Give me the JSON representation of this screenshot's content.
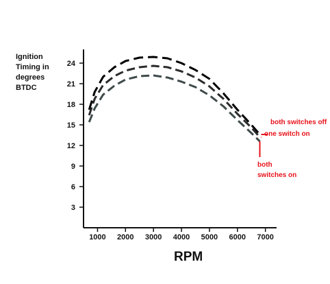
{
  "chart_data": {
    "type": "line",
    "title": "",
    "ylabel": "Ignition\nTiming in\ndegrees\nBTDC",
    "xlabel": "RPM",
    "x_ticks": [
      "1000",
      "2000",
      "3000",
      "4000",
      "5000",
      "6000",
      "7000"
    ],
    "y_ticks": [
      "3",
      "6",
      "9",
      "12",
      "15",
      "18",
      "21",
      "24"
    ],
    "xlim": [
      500,
      7400
    ],
    "ylim": [
      0,
      26
    ],
    "grid": false,
    "series": [
      {
        "name": "both switches off",
        "x": [
          700,
          900,
          1200,
          1600,
          2000,
          2500,
          3000,
          3500,
          4000,
          4500,
          5000,
          5500,
          6000,
          6500,
          6800
        ],
        "y": [
          17.2,
          19.8,
          22.0,
          23.4,
          24.3,
          24.8,
          24.9,
          24.7,
          24.0,
          23.0,
          21.7,
          19.6,
          17.2,
          15.0,
          13.6
        ],
        "color": "#000000",
        "dash": "14 7",
        "width": 3
      },
      {
        "name": "one switch on",
        "x": [
          700,
          900,
          1200,
          1600,
          2000,
          2500,
          3000,
          3500,
          4000,
          4500,
          5000,
          5500,
          6000,
          6500,
          6800
        ],
        "y": [
          16.4,
          18.8,
          20.8,
          22.1,
          22.9,
          23.4,
          23.6,
          23.4,
          22.8,
          21.9,
          20.6,
          18.8,
          16.6,
          14.6,
          13.2
        ],
        "color": "#2b2b2b",
        "dash": "12 6",
        "width": 3
      },
      {
        "name": "both switches on",
        "x": [
          700,
          900,
          1200,
          1600,
          2000,
          2500,
          3000,
          3500,
          4000,
          4500,
          5000,
          5500,
          6000,
          6500,
          6800
        ],
        "y": [
          15.4,
          17.4,
          19.4,
          20.7,
          21.6,
          22.1,
          22.2,
          21.9,
          21.3,
          20.5,
          19.3,
          17.7,
          15.7,
          13.8,
          12.6
        ],
        "color": "#3f4a4a",
        "dash": "12 6",
        "width": 3
      }
    ],
    "annotations": [
      {
        "text": "both switches off",
        "color": "#e8121a"
      },
      {
        "text": "one switch on",
        "color": "#e8121a"
      },
      {
        "text": "both\nswitches on",
        "color": "#e8121a"
      }
    ]
  }
}
